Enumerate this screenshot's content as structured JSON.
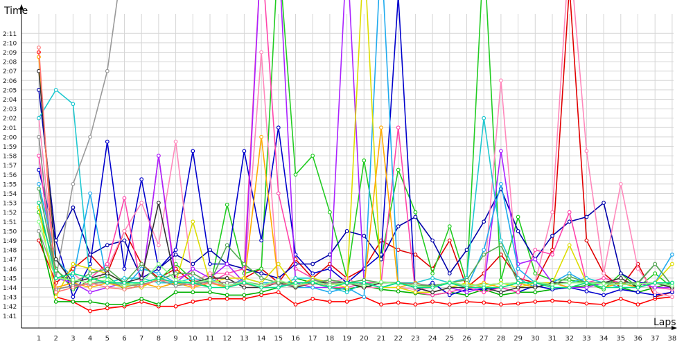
{
  "chart_data": {
    "type": "line",
    "xlabel": "Laps",
    "ylabel": "Time",
    "x": [
      1,
      2,
      3,
      4,
      5,
      6,
      7,
      8,
      9,
      10,
      11,
      12,
      13,
      14,
      15,
      16,
      17,
      18,
      19,
      20,
      21,
      22,
      23,
      24,
      25,
      26,
      27,
      28,
      29,
      30,
      31,
      32,
      33,
      34,
      35,
      36,
      37,
      38
    ],
    "y_tick_labels": [
      "1:41",
      "1:42",
      "1:43",
      "1:44",
      "1:45",
      "1:46",
      "1:47",
      "1:48",
      "1:49",
      "1:50",
      "1:51",
      "1:52",
      "1:53",
      "1:54",
      "1:55",
      "1:56",
      "1:57",
      "1:58",
      "1:59",
      "2:00",
      "2:01",
      "2:02",
      "2:03",
      "2:04",
      "2:05",
      "2:06",
      "2:07",
      "2:08",
      "2:09",
      "2:10",
      "2:11"
    ],
    "ylim_seconds": [
      100,
      132
    ],
    "grid": true,
    "legend": "none",
    "series": [
      {
        "color": "#ff0000",
        "values": [
          129,
          103,
          102.5,
          101.5,
          101.8,
          102,
          102.5,
          102,
          102,
          102.5,
          102.8,
          102.8,
          102.8,
          103.2,
          103.5,
          102.2,
          102.8,
          102.5,
          102.5,
          103,
          102.2,
          102.4,
          102.2,
          102.5,
          102.2,
          102.5,
          102.4,
          102.2,
          102.3,
          102.5,
          102.6,
          102.5,
          102.3,
          102.2,
          102.8,
          102.2,
          102.8,
          103
        ]
      },
      {
        "color": "#e00000",
        "values": [
          109,
          104.5,
          106,
          107.5,
          105.5,
          110,
          106.5,
          105,
          106,
          104.5,
          105.5,
          104,
          105,
          106,
          104.5,
          107,
          105,
          106.5,
          105,
          106,
          109,
          108,
          107.5,
          106,
          109,
          104,
          105.5,
          107.5,
          105,
          104.5,
          108,
          136,
          109,
          105.5,
          104,
          106.5,
          103,
          103.5
        ]
      },
      {
        "color": "#00b000",
        "values": [
          110,
          102.5,
          102.5,
          102.5,
          102.2,
          102.2,
          102.8,
          102.2,
          103.5,
          103.5,
          103.5,
          103.2,
          103.2,
          103.5,
          104,
          105,
          104.5,
          104,
          103.8,
          104.2,
          103.8,
          103.6,
          103.4,
          103.2,
          103.5,
          103.2,
          103.8,
          103.2,
          103.5,
          103.5,
          103.8,
          104,
          104.2,
          104.5,
          104,
          103.5,
          104,
          104.5
        ]
      },
      {
        "color": "#22cc22",
        "values": [
          112,
          106,
          103.8,
          104.8,
          105.2,
          103.8,
          104.2,
          104.8,
          106.5,
          104.8,
          104,
          112.8,
          105.5,
          106,
          140,
          116,
          118,
          112,
          105,
          117.5,
          107,
          116.5,
          112,
          105.5,
          110.5,
          104.5,
          140,
          104.8,
          111.5,
          105.5,
          104.8,
          104.8,
          104.5,
          103.8,
          105.5,
          104,
          105.5,
          104
        ]
      },
      {
        "color": "#0000cc",
        "values": [
          116.5,
          109,
          103,
          106.5,
          119.5,
          106,
          115.5,
          106,
          108,
          118.5,
          106.5,
          106.5,
          118.5,
          109,
          121,
          107.5,
          105.5,
          106,
          104.5,
          106,
          107.5,
          135,
          103.5,
          104.5,
          103.2,
          103.8,
          103.8,
          104,
          103.5,
          104.2,
          103.8,
          104,
          103.6,
          103.2,
          103.8,
          103.5,
          103.2,
          103.5
        ]
      },
      {
        "color": "#0000aa",
        "values": [
          125,
          109,
          112.5,
          107.5,
          108.5,
          109,
          105,
          106,
          107.5,
          106.5,
          108,
          106.5,
          106,
          105.5,
          105,
          106.5,
          106.5,
          107.5,
          110,
          109.5,
          107,
          110.5,
          111.5,
          109,
          105.5,
          108,
          111,
          114.5,
          110,
          107,
          109.5,
          111,
          111.5,
          113,
          105.5,
          104.5,
          104.5,
          104
        ]
      },
      {
        "color": "#ff88bb",
        "values": [
          122,
          105,
          105.5,
          104,
          106,
          110,
          113,
          108.5,
          119.5,
          104.5,
          105.5,
          105.5,
          104.5,
          129,
          104,
          104.5,
          104.5,
          104.5,
          105,
          104,
          104,
          104,
          103.8,
          104,
          104.5,
          104,
          104.5,
          126,
          104.5,
          104.5,
          112,
          140,
          118.5,
          105.5,
          115,
          106,
          103.5,
          103
        ]
      },
      {
        "color": "#ff44aa",
        "values": [
          118,
          104,
          104.5,
          105,
          106.5,
          113.5,
          104,
          118,
          105,
          105.5,
          104.5,
          105.5,
          106,
          140,
          114,
          106,
          105,
          104,
          104,
          104.5,
          104.5,
          121,
          103.5,
          103.2,
          103.5,
          104,
          103.5,
          104,
          103.5,
          108,
          107.5,
          112,
          104.5,
          105,
          104.5,
          104.5,
          104,
          103.8
        ]
      },
      {
        "color": "#aa22ff",
        "values": [
          113,
          105,
          104.5,
          103.5,
          104,
          104.5,
          104,
          118,
          104.5,
          106,
          105,
          106.5,
          104.5,
          140,
          140,
          104.5,
          104,
          104,
          140,
          104.5,
          104,
          104.5,
          104,
          103.5,
          104,
          103.5,
          104,
          118.5,
          106.5,
          107,
          104.5,
          104,
          104,
          104.5,
          104.5,
          104.5,
          104,
          104
        ]
      },
      {
        "color": "#20c8d0",
        "values": [
          122,
          125,
          123.5,
          104.5,
          104.5,
          105,
          105,
          104.5,
          104.5,
          105,
          104.5,
          104,
          104.5,
          104,
          104,
          105,
          105,
          104,
          103.5,
          104.5,
          104,
          104.5,
          104.5,
          105,
          104.5,
          105,
          122,
          109,
          105,
          104,
          104.5,
          104.5,
          105,
          104.5,
          104.5,
          104,
          104.5,
          104
        ]
      },
      {
        "color": "#1faaee",
        "values": [
          115,
          107,
          105,
          114,
          104.5,
          104,
          106,
          105.5,
          104.5,
          104.5,
          105,
          104,
          105,
          104.5,
          104.5,
          104,
          104,
          103.5,
          104,
          103,
          140,
          104,
          104.5,
          104,
          104.5,
          104,
          108,
          115,
          106,
          104.5,
          104.5,
          105.5,
          104.5,
          104.5,
          104,
          104,
          104.5,
          107.5
        ]
      },
      {
        "color": "#999999",
        "values": [
          110,
          105,
          115,
          120,
          127,
          140,
          140,
          140,
          140,
          140,
          140,
          140,
          140,
          140,
          140,
          140,
          140,
          140,
          140,
          140,
          140,
          140,
          140,
          140,
          140,
          140,
          140,
          140,
          140,
          140,
          140,
          140,
          140,
          140,
          140,
          140,
          140,
          140
        ]
      },
      {
        "color": "#dddd00",
        "values": [
          112.5,
          103,
          106.5,
          106,
          105.5,
          104.5,
          104,
          105,
          104.5,
          111,
          104.5,
          105,
          105,
          104.5,
          106.5,
          104,
          105,
          104.5,
          104,
          140,
          104,
          104,
          103.5,
          103.5,
          104,
          104.5,
          104,
          104.5,
          104,
          104.5,
          104.5,
          108.5,
          104.5,
          104,
          104.5,
          104,
          104.5,
          106.5
        ]
      },
      {
        "color": "#ffaa00",
        "values": [
          128.5,
          104,
          104.5,
          104,
          104.5,
          104,
          104.5,
          104,
          104.5,
          104,
          104.5,
          104,
          104.5,
          120,
          104.5,
          104,
          104.5,
          104,
          104.5,
          104,
          121,
          104,
          104.5,
          104,
          104.5,
          104,
          104.5,
          104,
          104.5,
          104,
          104.5,
          104,
          104.5,
          104,
          104.5,
          104,
          104.5,
          104
        ]
      },
      {
        "color": "#333333",
        "values": [
          127,
          107,
          104.5,
          105,
          105.5,
          104.5,
          105,
          113,
          104.5,
          104.5,
          105,
          105,
          104,
          104,
          104.5,
          104,
          104.5,
          104.5,
          104.5,
          104,
          104.5,
          104.5,
          104,
          103.5,
          104,
          104,
          104,
          103.5,
          104,
          104,
          104.5,
          104.5,
          104.5,
          104.5,
          105,
          104,
          104.5,
          104
        ]
      },
      {
        "color": "#888888",
        "values": [
          120,
          103.8,
          104.2,
          104.4,
          104.6,
          104.2,
          104.3,
          104.8,
          104.2,
          104.4,
          104.6,
          104.5,
          104.6,
          104.3,
          104.4,
          104.1,
          104.8,
          104.5,
          104.4,
          104.3,
          104.6,
          104.5,
          104.4,
          104.2,
          104.5,
          104.2,
          104.3,
          104.4,
          104.5,
          104.6,
          104.3,
          104.5,
          104.5,
          104.4,
          104.3,
          104.4,
          106.5,
          104.2
        ]
      },
      {
        "color": "#ff7777",
        "values": [
          129.5,
          103.5,
          104,
          104.5,
          104,
          103.8,
          104.2,
          104.8,
          104.6,
          104.2,
          104.5,
          104.2,
          104.4,
          104,
          104.6,
          104.2,
          104.4,
          104.3,
          104.5,
          104.2,
          104.6,
          104.4,
          104.2,
          104,
          104.6,
          104.2,
          104.3,
          104.4,
          104.5,
          104.6,
          104.3,
          104.5,
          104.5,
          104.4,
          104.3,
          104.4,
          104.5,
          104.2
        ]
      },
      {
        "color": "#55aa55",
        "values": [
          114.5,
          105.8,
          104.5,
          105.5,
          106,
          104.5,
          106.5,
          104.8,
          105.5,
          105.5,
          104.5,
          108.5,
          106.5,
          105,
          104.5,
          104.5,
          104.5,
          104.8,
          104.5,
          104.8,
          104.5,
          104.5,
          104.2,
          104.2,
          104.5,
          104.8,
          107.5,
          108.5,
          104.5,
          104.5,
          104.2,
          105.2,
          104.5,
          104.5,
          104.5,
          104.5,
          106.5,
          104.2
        ]
      },
      {
        "color": "#88ff88",
        "values": [
          111,
          105,
          104.8,
          104.5,
          104.8,
          104.2,
          104.5,
          106.5,
          104.8,
          104.5,
          104.8,
          104.2,
          104.6,
          104.2,
          104.8,
          104.2,
          104.6,
          104.3,
          104.5,
          104.2,
          104.6,
          104.4,
          104.2,
          104,
          104.6,
          104.2,
          104.3,
          104.4,
          104.5,
          104.6,
          104.3,
          104.5,
          104.5,
          104.4,
          104.3,
          104.4,
          104.5,
          104.2
        ]
      },
      {
        "color": "#00dd88",
        "values": [
          113,
          105,
          105.5,
          105,
          104.5,
          104.5,
          104.5,
          105,
          104.5,
          104.5,
          104,
          104,
          104.5,
          104,
          104,
          104.5,
          104.5,
          104,
          104.5,
          104.5,
          104,
          104.5,
          104,
          104,
          104.5,
          104,
          104,
          104,
          104.5,
          104.5,
          104,
          104,
          104.5,
          104,
          104,
          104,
          104.5,
          104.5
        ]
      }
    ]
  }
}
